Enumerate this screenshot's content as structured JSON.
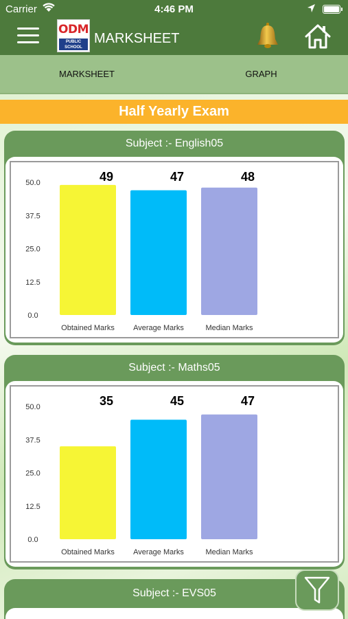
{
  "status_bar": {
    "carrier": "Carrier",
    "time": "4:46 PM"
  },
  "header": {
    "title": "MARKSHEET",
    "logo": {
      "main": "ODM",
      "sub": "PUBLIC SCHOOL"
    }
  },
  "tabs": [
    {
      "label": "MARKSHEET"
    },
    {
      "label": "GRAPH"
    }
  ],
  "exam_title": "Half Yearly Exam",
  "colors": {
    "obtained": "#f6f535",
    "average": "#00bbf9",
    "median": "#9ea7e3",
    "header": "#4d7a3c",
    "card": "#6a9a5b",
    "banner": "#fbb32b"
  },
  "chart_data": [
    {
      "type": "bar",
      "subject": "Subject :- English05",
      "categories": [
        "Obtained Marks",
        "Average Marks",
        "Median Marks"
      ],
      "values": [
        49,
        47,
        48
      ],
      "value_labels": [
        "49",
        "47",
        "48"
      ],
      "yticks": [
        "0.0",
        "12.5",
        "25.0",
        "37.5",
        "50.0"
      ],
      "ylim": [
        0,
        50
      ]
    },
    {
      "type": "bar",
      "subject": "Subject :- Maths05",
      "categories": [
        "Obtained Marks",
        "Average Marks",
        "Median Marks"
      ],
      "values": [
        35,
        45,
        47
      ],
      "value_labels": [
        "35",
        "45",
        "47"
      ],
      "yticks": [
        "0.0",
        "12.5",
        "25.0",
        "37.5",
        "50.0"
      ],
      "ylim": [
        0,
        50
      ]
    }
  ],
  "third_subject": {
    "subject": "Subject :- EVS05"
  }
}
